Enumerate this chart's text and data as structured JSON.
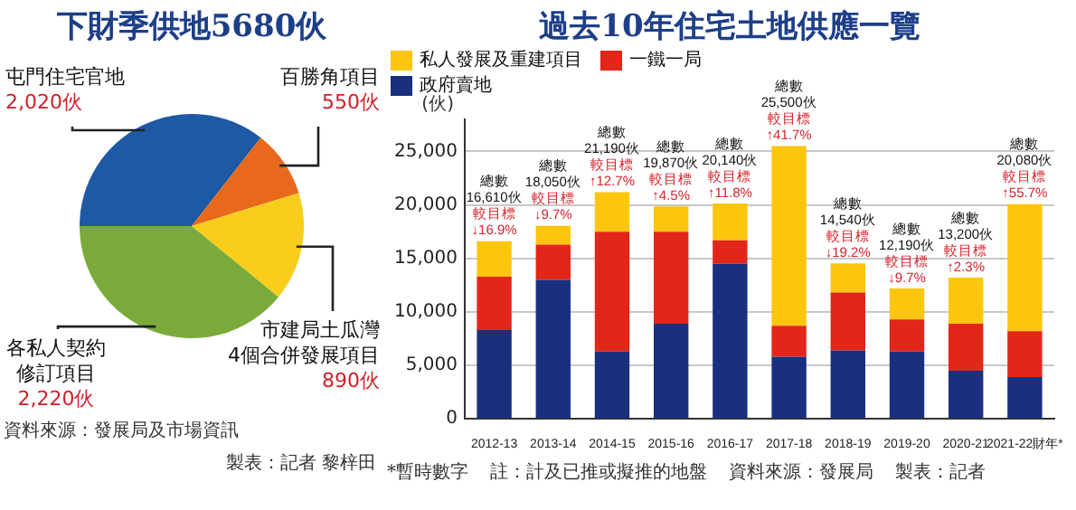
{
  "chart_data": [
    {
      "type": "pie",
      "title": "下財季供地5680伙",
      "categories": [
        "屯門住宅官地",
        "百勝角項目",
        "市建局土瓜灣\n4個合併發展項目",
        "各私人契約修訂項目"
      ],
      "values": [
        2020,
        550,
        890,
        2220
      ],
      "colors": [
        "#1f58a3",
        "#e8691b",
        "#f8cd1c",
        "#7aab3a"
      ],
      "value_labels": [
        "2,020伙",
        "550伙",
        "890伙",
        "2,220伙"
      ],
      "annotations": [
        "資料來源：發展局及市場資訊",
        "製表：記者 黎梓田"
      ]
    },
    {
      "type": "bar",
      "title": "過去10年住宅土地供應一覽",
      "ylabel": "(伙)",
      "stacked": true,
      "legend": "top left",
      "grid": "y",
      "ylim": [
        0,
        28000
      ],
      "yticks": [
        0,
        {
          "value": 5000,
          "label": "5,000"
        },
        {
          "value": 10000,
          "label": "10,000"
        },
        {
          "value": 15000,
          "label": "15,000"
        },
        {
          "value": 20000,
          "label": "20,000"
        },
        {
          "value": 25000,
          "label": "25,000"
        }
      ],
      "categories": [
        "2012-13",
        "2013-14",
        "2014-15",
        "2015-16",
        "2016-17",
        "2017-18",
        "2018-19",
        "2019-20",
        "2020-21",
        "2021-22財年*"
      ],
      "series": [
        {
          "name": "政府賣地",
          "color": "#1a2f7e",
          "values": [
            8300,
            13000,
            6300,
            8900,
            14500,
            5800,
            6400,
            6300,
            4500,
            3900
          ]
        },
        {
          "name": "一鐵一局",
          "color": "#e3261a",
          "values": [
            5000,
            3300,
            11200,
            8600,
            2200,
            2900,
            5400,
            3000,
            4400,
            4300
          ]
        },
        {
          "name": "私人發展及重建項目",
          "color": "#fcc60e",
          "values": [
            3310,
            1750,
            3690,
            2370,
            3440,
            16800,
            2740,
            2890,
            4300,
            11880
          ]
        }
      ],
      "totals": [
        "16,610伙",
        "18,050伙",
        "21,190伙",
        "19,870伙",
        "20,140伙",
        "25,500伙",
        "14,540伙",
        "12,190伙",
        "13,200伙",
        "20,080伙"
      ],
      "annotations": [
        "總數",
        "較目標",
        "↓16.9%",
        "總數",
        "較目標",
        "↓9.7%",
        "總數",
        "較目標",
        "↑12.7%",
        "總數",
        "較目標",
        "↑4.5%",
        "總數",
        "較目標",
        "↑11.8%",
        "總數",
        "較目標",
        "↑41.7%",
        "總數",
        "較目標",
        "↓19.2%",
        "總數",
        "較目標",
        "↓9.7%",
        "總數",
        "較目標",
        "↑2.3%",
        "總數",
        "較目標",
        "↑55.7%",
        "*暫時數字",
        "註：計及已推或擬推的地盤",
        "資料來源：發展局",
        "製表：記者"
      ]
    }
  ]
}
